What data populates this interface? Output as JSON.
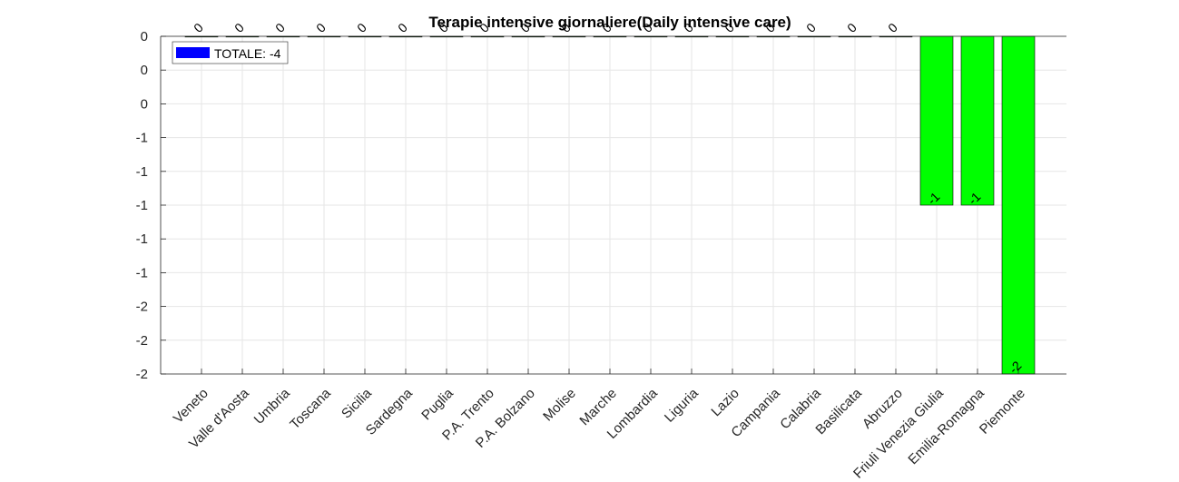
{
  "chart_data": {
    "type": "bar",
    "title": "Terapie intensive giornaliere(Daily intensive care)",
    "xlabel": "",
    "ylabel": "",
    "categories": [
      "Veneto",
      "Valle d'Aosta",
      "Umbria",
      "Toscana",
      "Sicilia",
      "Sardegna",
      "Puglia",
      "P.A. Trento",
      "P.A. Bolzano",
      "Molise",
      "Marche",
      "Lombardia",
      "Liguria",
      "Lazio",
      "Campania",
      "Calabria",
      "Basilicata",
      "Abruzzo",
      "Friuli Venezia Giulia",
      "Emilia-Romagna",
      "Piemonte"
    ],
    "values": [
      0,
      0,
      0,
      0,
      0,
      0,
      0,
      0,
      0,
      0,
      0,
      0,
      0,
      0,
      0,
      0,
      0,
      0,
      -1,
      -1,
      -2
    ],
    "value_labels": [
      "0",
      "0",
      "0",
      "0",
      "0",
      "0",
      "0",
      "0",
      "0",
      "0",
      "0",
      "0",
      "0",
      "0",
      "0",
      "0",
      "0",
      "0",
      "-1",
      "-1",
      "-2"
    ],
    "ylim": [
      -2,
      0
    ],
    "y_ticks": [
      0,
      -0.2,
      -0.4,
      -0.6,
      -0.8,
      -1,
      -1.2,
      -1.4,
      -1.6,
      -1.8,
      -2
    ],
    "y_tick_labels": [
      "0",
      "0",
      "0",
      "-1",
      "-1",
      "-1",
      "-1",
      "-1",
      "-2",
      "-2",
      "-2"
    ],
    "grid": true,
    "bar_color": "#00ff00",
    "legend": {
      "label": "TOTALE: -4",
      "color": "#0000ff",
      "placement": "top-left"
    }
  }
}
